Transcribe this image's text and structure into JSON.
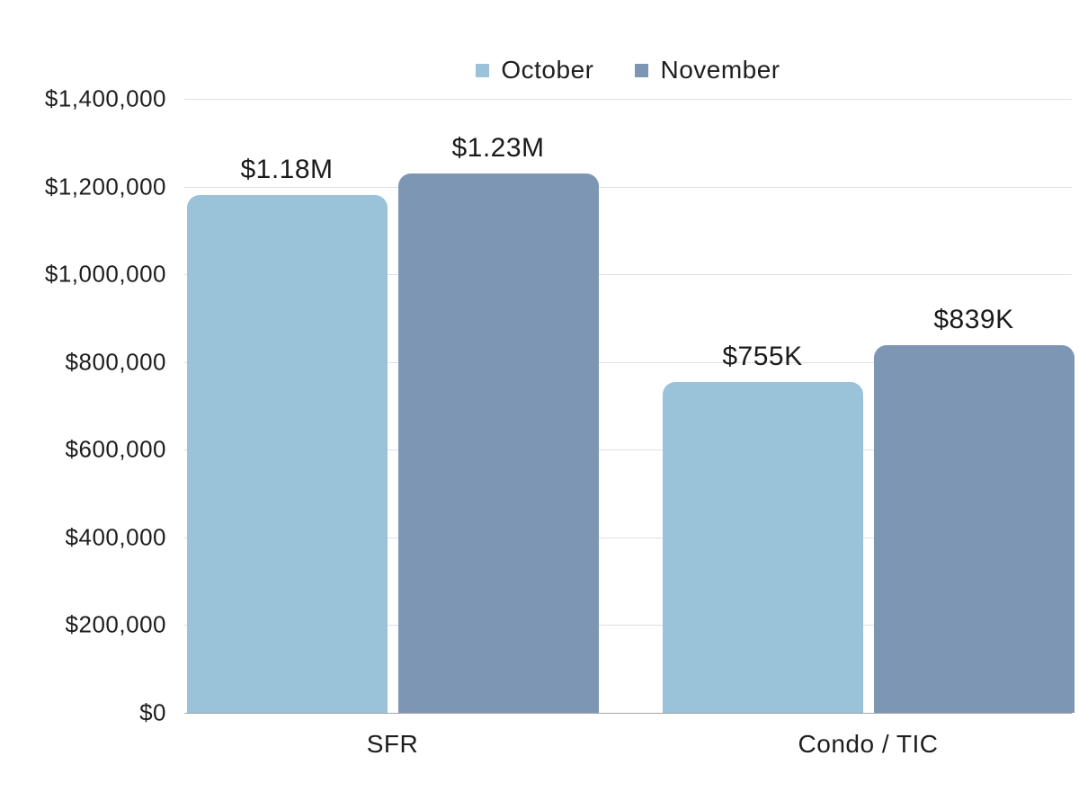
{
  "chart_data": {
    "type": "bar",
    "title": "",
    "categories": [
      "SFR",
      "Condo / TIC"
    ],
    "series": [
      {
        "name": "October",
        "color": "#9AC3DA",
        "values": [
          1180000,
          755000
        ],
        "value_labels": [
          "$1.18M",
          "$755K"
        ]
      },
      {
        "name": "November",
        "color": "#7D96B4",
        "values": [
          1230000,
          839000
        ],
        "value_labels": [
          "$1.23M",
          "$839K"
        ]
      }
    ],
    "ylim": [
      0,
      1400000
    ],
    "ytick_step": 200000,
    "ytick_labels": [
      "$0",
      "$200,000",
      "$400,000",
      "$600,000",
      "$800,000",
      "$1,000,000",
      "$1,200,000",
      "$1,400,000"
    ],
    "grid": true,
    "legend_position": "top-center",
    "colors": {
      "text": "#1E1E1E",
      "gridline": "#DDE0E4",
      "axis_line": "#A3A3A3",
      "background": "#FFFFFF"
    }
  }
}
